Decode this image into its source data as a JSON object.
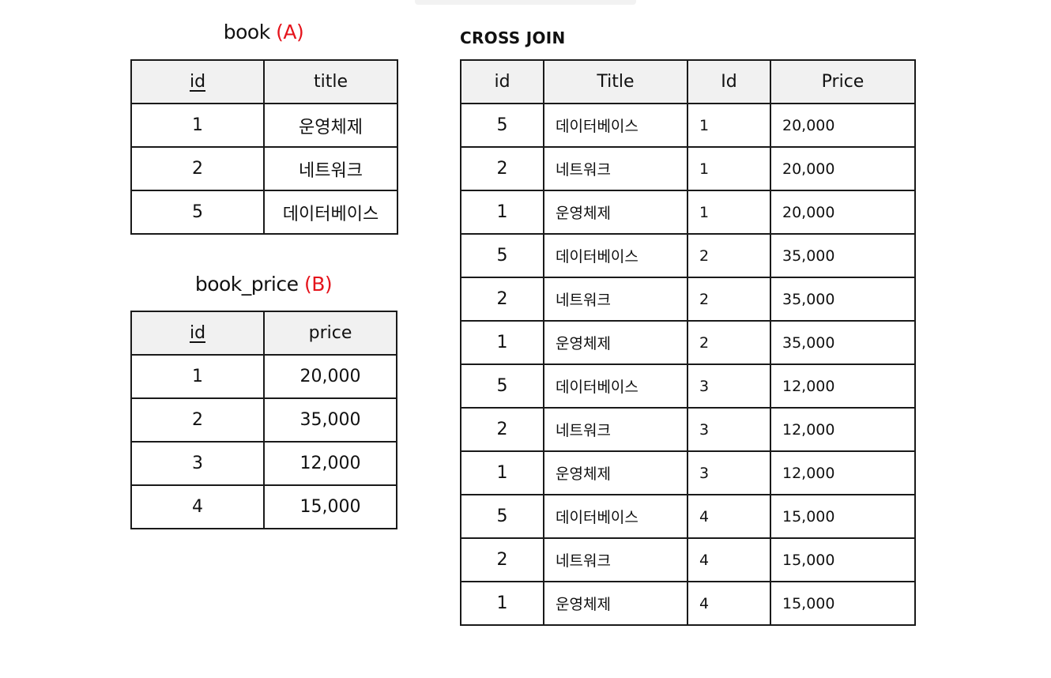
{
  "table_a": {
    "title": "book",
    "tag": "(A)",
    "headers": [
      "id",
      "title"
    ],
    "rows": [
      [
        "1",
        "운영체제"
      ],
      [
        "2",
        "네트워크"
      ],
      [
        "5",
        "데이터베이스"
      ]
    ]
  },
  "table_b": {
    "title": "book_price",
    "tag": "(B)",
    "headers": [
      "id",
      "price"
    ],
    "rows": [
      [
        "1",
        "20,000"
      ],
      [
        "2",
        "35,000"
      ],
      [
        "3",
        "12,000"
      ],
      [
        "4",
        "15,000"
      ]
    ]
  },
  "cross_join": {
    "title": "CROSS JOIN",
    "headers": [
      "id",
      "Title",
      "Id",
      "Price"
    ],
    "rows": [
      [
        "5",
        "데이터베이스",
        "1",
        "20,000"
      ],
      [
        "2",
        "네트워크",
        "1",
        "20,000"
      ],
      [
        "1",
        "운영체제",
        "1",
        "20,000"
      ],
      [
        "5",
        "데이터베이스",
        "2",
        "35,000"
      ],
      [
        "2",
        "네트워크",
        "2",
        "35,000"
      ],
      [
        "1",
        "운영체제",
        "2",
        "35,000"
      ],
      [
        "5",
        "데이터베이스",
        "3",
        "12,000"
      ],
      [
        "2",
        "네트워크",
        "3",
        "12,000"
      ],
      [
        "1",
        "운영체제",
        "3",
        "12,000"
      ],
      [
        "5",
        "데이터베이스",
        "4",
        "15,000"
      ],
      [
        "2",
        "네트워크",
        "4",
        "15,000"
      ],
      [
        "1",
        "운영체제",
        "4",
        "15,000"
      ]
    ]
  },
  "colors": {
    "tag": "#e5141c",
    "header_bg": "#f1f1f1",
    "border": "#1a1a1a"
  }
}
